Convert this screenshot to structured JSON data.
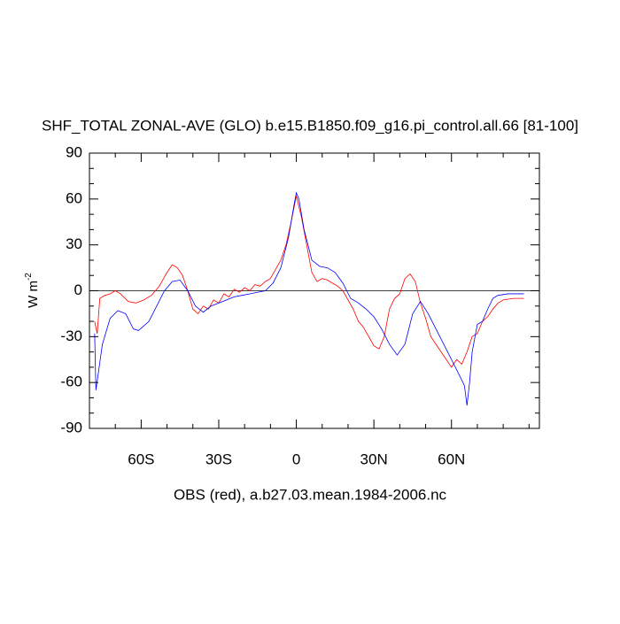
{
  "chart_data": {
    "type": "line",
    "title": "SHF_TOTAL ZONAL-AVE (GLO) b.e15.B1850.f09_g16.pi_control.all.66 [81-100]",
    "ylabel": [
      "W m",
      "-2"
    ],
    "caption": "OBS (red), a.b27.03.mean.1984-2006.nc",
    "xlim": [
      -80,
      94
    ],
    "ylim": [
      -90,
      90
    ],
    "xticks": [
      {
        "value": -60,
        "label": "60S"
      },
      {
        "value": -30,
        "label": "30S"
      },
      0,
      {
        "value": 30,
        "label": "30N"
      },
      {
        "value": 60,
        "label": "60N"
      }
    ],
    "xminorticks": [
      -70,
      -50,
      -40,
      -20,
      -10,
      10,
      20,
      40,
      50,
      70,
      80,
      90
    ],
    "yticks": [
      -90,
      -60,
      -30,
      0,
      30,
      60,
      90
    ],
    "yminorticks": [
      -80,
      -70,
      -50,
      -40,
      -20,
      -10,
      10,
      20,
      40,
      50,
      70,
      80
    ],
    "yref": 0,
    "series": [
      {
        "color": "#ff0000",
        "x": [
          -78,
          -77,
          -76,
          -74,
          -72,
          -70,
          -68,
          -65,
          -62,
          -59,
          -56,
          -53,
          -50,
          -48,
          -46,
          -44,
          -42,
          -40,
          -38,
          -36,
          -34,
          -32,
          -30,
          -28,
          -26,
          -24,
          -22,
          -20,
          -18,
          -16,
          -14,
          -12,
          -10,
          -8,
          -6,
          -4,
          -2,
          0,
          2,
          4,
          6,
          8,
          10,
          12,
          14,
          16,
          18,
          20,
          22,
          24,
          26,
          28,
          30,
          32,
          34,
          36,
          38,
          40,
          42,
          44,
          46,
          48,
          50,
          52,
          54,
          56,
          58,
          60,
          62,
          64,
          66,
          68,
          70,
          72,
          74,
          76,
          78,
          80,
          84,
          88
        ],
        "values": [
          -20,
          -28,
          -5,
          -3,
          -2,
          0,
          -2,
          -7,
          -8,
          -6,
          -3,
          3,
          12,
          17,
          15,
          10,
          0,
          -12,
          -15,
          -10,
          -12,
          -6,
          -8,
          -2,
          -4,
          1,
          -1,
          2,
          0,
          4,
          3,
          6,
          8,
          14,
          20,
          30,
          45,
          62,
          48,
          30,
          12,
          6,
          8,
          7,
          5,
          3,
          0,
          -6,
          -12,
          -20,
          -24,
          -30,
          -36,
          -38,
          -30,
          -12,
          -5,
          -2,
          8,
          11,
          6,
          -8,
          -18,
          -30,
          -35,
          -40,
          -45,
          -50,
          -45,
          -48,
          -40,
          -30,
          -28,
          -20,
          -17,
          -12,
          -8,
          -6,
          -5,
          -5
        ]
      },
      {
        "color": "#0000ff",
        "x": [
          -78,
          -77.5,
          -75,
          -72,
          -69,
          -66,
          -63,
          -61,
          -57,
          -54,
          -51,
          -48,
          -45,
          -42,
          -39,
          -36,
          -33,
          -30,
          -27,
          -24,
          -21,
          -18,
          -15,
          -12,
          -9,
          -6,
          -3,
          -1,
          0,
          1,
          3,
          6,
          9,
          12,
          15,
          18,
          21,
          24,
          27,
          30,
          33,
          36,
          39,
          42,
          45,
          48,
          51,
          54,
          57,
          60,
          63,
          65,
          66,
          67,
          68,
          70,
          72,
          74,
          76,
          78,
          82,
          88
        ],
        "values": [
          -28,
          -65,
          -35,
          -18,
          -13,
          -15,
          -25,
          -26,
          -20,
          -10,
          0,
          6,
          7,
          0,
          -10,
          -14,
          -10,
          -8,
          -6,
          -4,
          -3,
          -2,
          -1,
          0,
          5,
          15,
          35,
          55,
          64,
          60,
          40,
          20,
          16,
          15,
          12,
          5,
          -5,
          -8,
          -12,
          -17,
          -25,
          -35,
          -42,
          -35,
          -15,
          -7,
          -15,
          -25,
          -35,
          -45,
          -55,
          -62,
          -75,
          -60,
          -40,
          -22,
          -20,
          -12,
          -5,
          -3,
          -2,
          -2
        ]
      }
    ]
  }
}
